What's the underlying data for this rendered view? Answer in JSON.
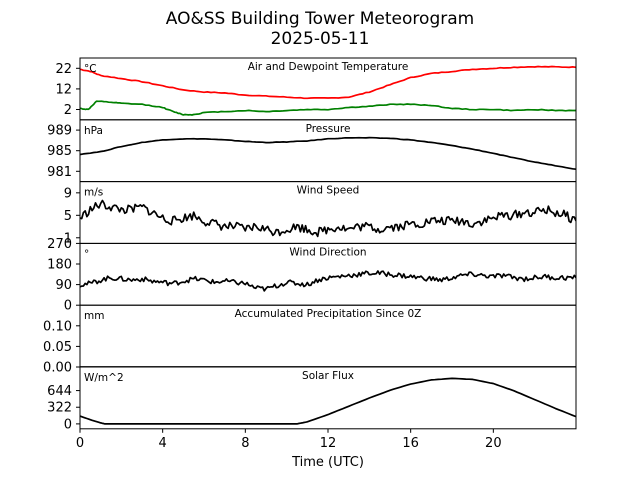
{
  "figure": {
    "title_line1": "AO&SS Building Tower Meteorogram",
    "title_line2": "2025-05-11",
    "xlabel": "Time (UTC)"
  },
  "chart_data": {
    "type": "line",
    "x_unit": "hours UTC",
    "xlim": [
      0,
      24
    ],
    "x_ticks": [
      0,
      4,
      8,
      12,
      16,
      20
    ],
    "grid": false,
    "panels": [
      {
        "title": "Air and Dewpoint Temperature",
        "unit": "°C",
        "ylim": [
          -3,
          27
        ],
        "yticks": [
          22,
          12,
          2
        ],
        "series": [
          {
            "color": "#ff0000",
            "x": [
              0,
              0.5,
              1,
              2,
              3,
              4,
              5,
              6,
              7,
              8,
              9,
              10,
              11,
              12,
              13,
              14,
              15,
              16,
              17,
              18,
              19,
              20,
              21,
              22,
              23,
              24
            ],
            "values": [
              21.5,
              20.5,
              18.5,
              17,
              15.5,
              13.5,
              11.5,
              10.5,
              10,
              9,
              8.5,
              8,
              7.5,
              7.5,
              8,
              10.5,
              14,
              17.5,
              19.5,
              20.5,
              21.5,
              22,
              22.5,
              22.8,
              22.7,
              22.5
            ]
          },
          {
            "color": "#008000",
            "x": [
              0,
              0.4,
              0.8,
              1.5,
              2,
              3,
              4,
              4.5,
              5,
              5.5,
              6,
              7,
              8,
              9,
              10,
              11,
              12,
              13,
              14,
              15,
              16,
              17,
              18,
              19,
              20,
              21,
              22,
              23,
              24
            ],
            "values": [
              2.5,
              2,
              6,
              5.5,
              5,
              4.5,
              3,
              1,
              -0.5,
              -0.5,
              0.5,
              1,
              1.5,
              1,
              1.5,
              2,
              2,
              3,
              3.5,
              4.5,
              4.5,
              4,
              2.5,
              2,
              2,
              1.5,
              2,
              1.5,
              1.5
            ]
          }
        ]
      },
      {
        "title": "Pressure",
        "unit": "hPa",
        "ylim": [
          979,
          991
        ],
        "yticks": [
          989,
          985,
          981
        ],
        "series": [
          {
            "color": "#000000",
            "x": [
              0,
              1,
              2,
              3,
              4,
              5,
              6,
              7,
              8,
              9,
              10,
              11,
              12,
              13,
              14,
              15,
              16,
              17,
              18,
              19,
              20,
              21,
              22,
              23,
              24
            ],
            "values": [
              984.3,
              984.8,
              985.8,
              986.6,
              987.1,
              987.3,
              987.3,
              987.1,
              986.8,
              986.6,
              986.7,
              986.9,
              987.3,
              987.5,
              987.5,
              987.4,
              987.1,
              986.6,
              986,
              985.3,
              984.5,
              983.6,
              982.8,
              982.1,
              981.4
            ]
          }
        ]
      },
      {
        "title": "Wind Speed",
        "unit": "m/s",
        "ylim": [
          0,
          11
        ],
        "yticks": [
          9,
          5,
          1
        ],
        "series": [
          {
            "color": "#000000",
            "x": [
              0,
              0.5,
              1,
              1.5,
              2,
              2.5,
              3,
              3.5,
              4,
              4.5,
              5,
              5.5,
              6,
              6.5,
              7,
              7.5,
              8,
              8.5,
              9,
              9.5,
              10,
              10.5,
              11,
              11.5,
              12,
              12.5,
              13,
              13.5,
              14,
              14.5,
              15,
              15.5,
              16,
              16.5,
              17,
              17.5,
              18,
              18.5,
              19,
              19.5,
              20,
              20.5,
              21,
              21.5,
              22,
              22.5,
              23,
              23.5,
              24
            ],
            "values": [
              4.5,
              6,
              7,
              6.5,
              6,
              6,
              6.5,
              5.5,
              4.5,
              4,
              4.5,
              5,
              4,
              3.5,
              3,
              3,
              2.5,
              3,
              2.5,
              2,
              2.5,
              3,
              2.5,
              2,
              2.5,
              3,
              2.5,
              3,
              3,
              2.5,
              3,
              3,
              3.5,
              3.5,
              4,
              4,
              4,
              4,
              3.5,
              4,
              4.5,
              5,
              5,
              5.5,
              5.5,
              6,
              5.5,
              5,
              4
            ]
          }
        ]
      },
      {
        "title": "Wind Direction",
        "unit": "°",
        "ylim": [
          0,
          270
        ],
        "yticks": [
          270,
          180,
          90,
          0
        ],
        "series": [
          {
            "color": "#000000",
            "x": [
              0,
              0.5,
              1,
              1.5,
              2,
              2.5,
              3,
              3.5,
              4,
              4.5,
              5,
              5.5,
              6,
              6.5,
              7,
              7.5,
              8,
              8.5,
              9,
              9.5,
              10,
              10.5,
              11,
              11.5,
              12,
              12.5,
              13,
              13.5,
              14,
              14.5,
              15,
              15.5,
              16,
              16.5,
              17,
              17.5,
              18,
              18.5,
              19,
              19.5,
              20,
              20.5,
              21,
              21.5,
              22,
              22.5,
              23,
              23.5,
              24
            ],
            "values": [
              90,
              95,
              110,
              120,
              115,
              110,
              115,
              105,
              100,
              95,
              105,
              115,
              110,
              100,
              105,
              100,
              95,
              75,
              70,
              85,
              100,
              95,
              90,
              110,
              120,
              125,
              130,
              135,
              140,
              140,
              135,
              130,
              125,
              120,
              115,
              110,
              120,
              130,
              135,
              130,
              125,
              130,
              120,
              115,
              120,
              125,
              120,
              120,
              120
            ]
          }
        ]
      },
      {
        "title": "Accumulated Precipitation Since 0Z",
        "unit": "mm",
        "ylim": [
          0,
          0.15
        ],
        "yticks": [
          0.1,
          0.05,
          0.0
        ],
        "ytick_labels": [
          "0.10",
          "0.05",
          "0.00"
        ],
        "series": [
          {
            "color": "#000000",
            "x": [
              0,
              24
            ],
            "values": [
              0,
              0
            ]
          }
        ]
      },
      {
        "title": "Solar Flux",
        "unit": "W/m^2",
        "ylim": [
          -95,
          1100
        ],
        "yticks": [
          644,
          322,
          0
        ],
        "series": [
          {
            "color": "#000000",
            "x": [
              0,
              0.5,
              1,
              1.2,
              2,
              4,
              6,
              8,
              10,
              10.5,
              11,
              12,
              13,
              14,
              15,
              16,
              17,
              18,
              19,
              20,
              21,
              22,
              23,
              24
            ],
            "values": [
              150,
              80,
              20,
              0,
              0,
              0,
              0,
              0,
              0,
              0,
              40,
              180,
              340,
              500,
              650,
              770,
              850,
              880,
              860,
              780,
              640,
              470,
              300,
              140
            ]
          }
        ]
      }
    ]
  }
}
